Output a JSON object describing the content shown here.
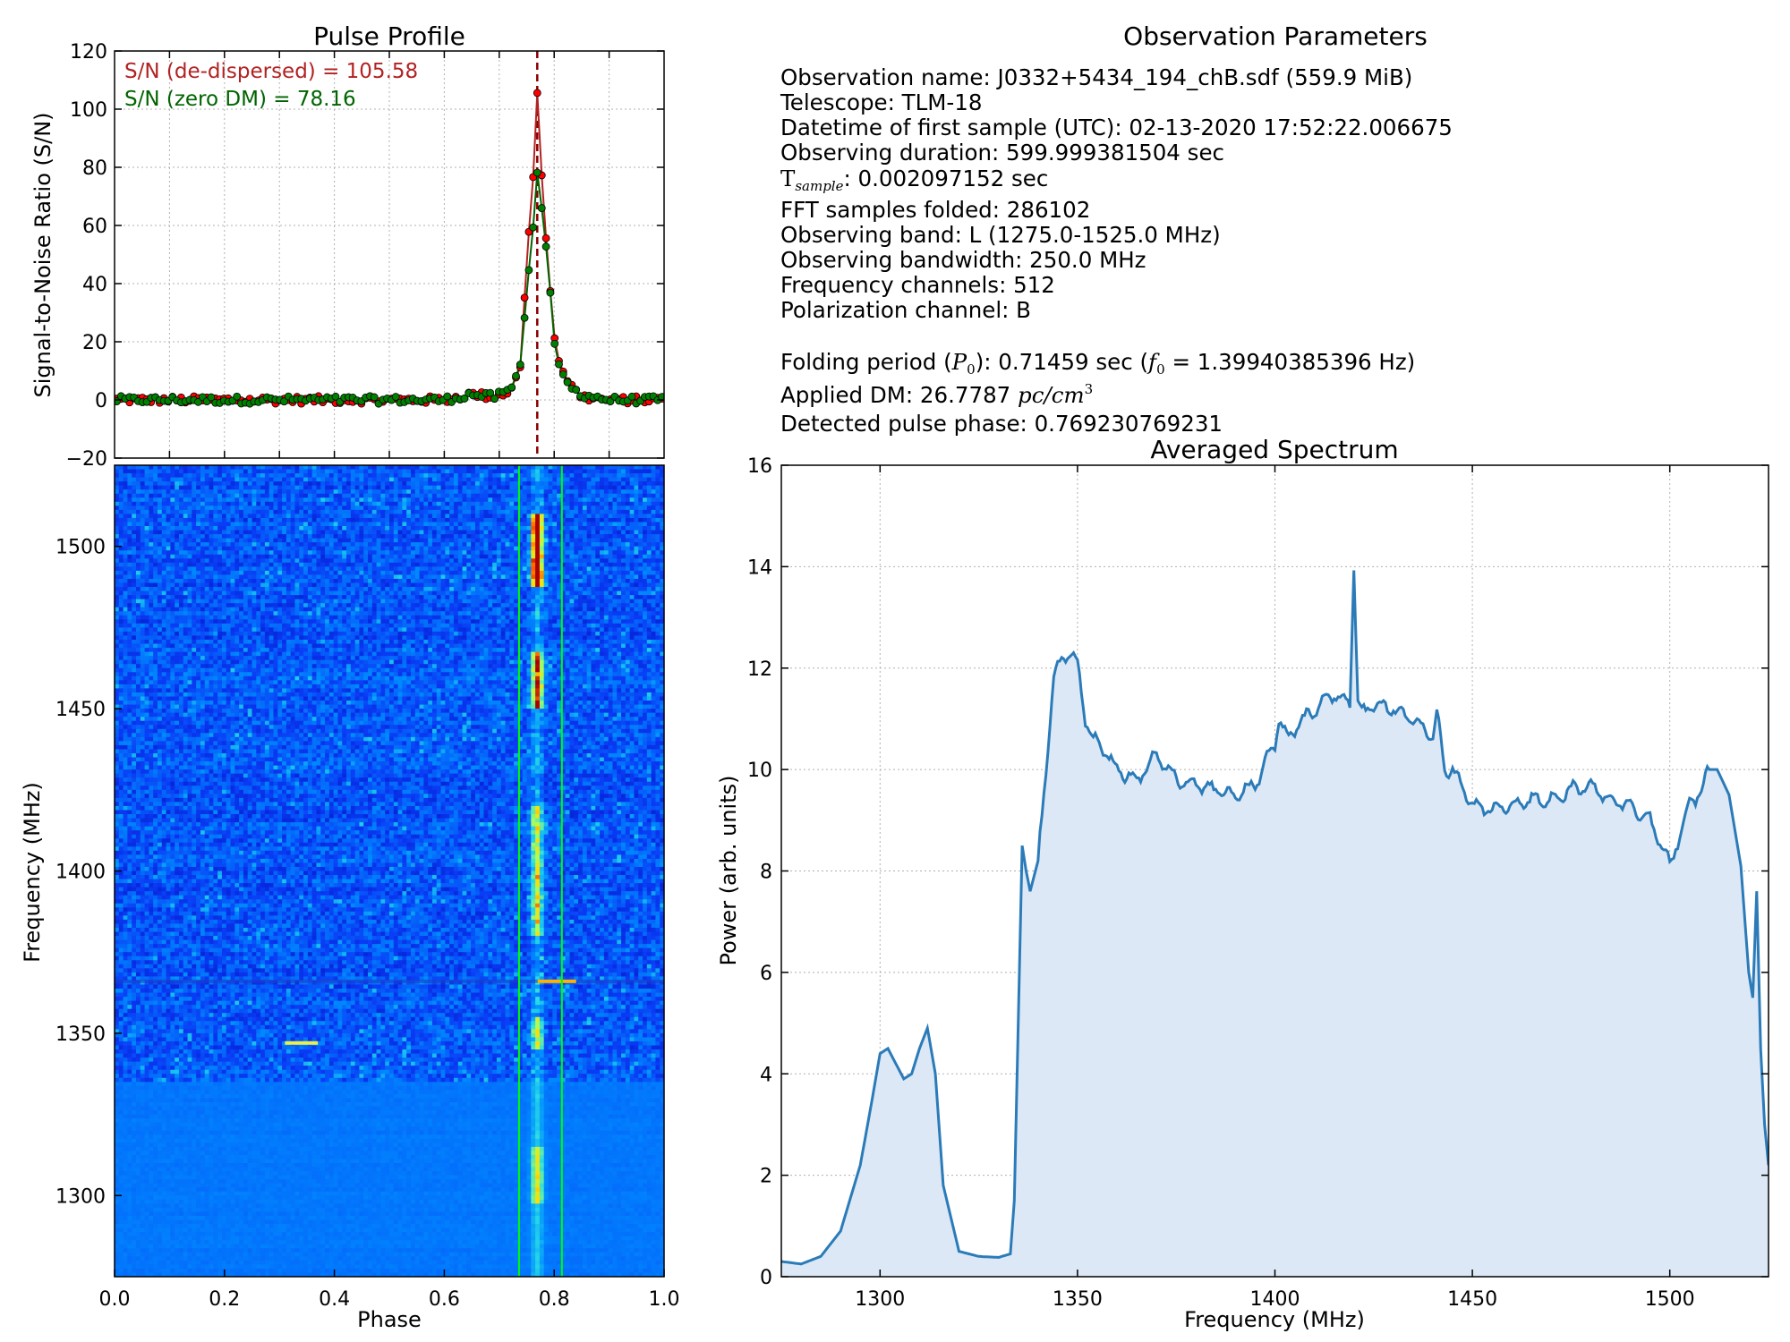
{
  "colors": {
    "snr_dedispersed": "#b22222",
    "snr_zero_dm": "#006400",
    "marker_red": "#ff0000",
    "marker_green": "#008000",
    "peak_line": "#8b0000",
    "spectrum_line": "#2b7bb9",
    "spectrum_fill": "#dce8f5",
    "window_line": "#00ff00",
    "grid": "#b0b0b0"
  },
  "params": {
    "title": "Observation Parameters",
    "lines": [
      "Observation name: J0332+5434_194_chB.sdf (559.9 MiB)",
      "Telescope: TLM-18",
      "Datetime of first sample (UTC): 02-13-2020 17:52:22.006675",
      "Observing duration: 599.999381504 sec",
      "FFT samples folded: 286102",
      "Observing band: L (1275.0-1525.0 MHz)",
      "Observing bandwidth: 250.0 MHz",
      "Frequency channels: 512",
      "Polarization channel: B"
    ],
    "tsample_symbol": "T",
    "tsample_sub": "sample",
    "tsample_value": ": 0.002097152 sec",
    "folding_prefix": "Folding period (",
    "folding_symbol": "P",
    "folding_sub": "0",
    "folding_mid": "): 0.71459 sec (",
    "folding_f": "f",
    "folding_fsub": "0",
    "folding_fval": " = 1.39940385396 Hz)",
    "dm_prefix": "Applied DM: 26.7787 ",
    "dm_unit": "pc/cm",
    "dm_exp": "3",
    "phase_line": "Detected pulse phase: 0.769230769231"
  },
  "chart_data": [
    {
      "id": "pulse_profile",
      "type": "line",
      "title": "Pulse Profile",
      "xlabel": "",
      "ylabel": "Signal-to-Noise Ratio (S/N)",
      "xlim": [
        0,
        1
      ],
      "ylim": [
        -20,
        120
      ],
      "yticks": [
        -20,
        0,
        20,
        40,
        60,
        80,
        100,
        120
      ],
      "grid": true,
      "annotations": [
        "S/N (de-dispersed) = 105.58",
        "S/N (zero DM) = 78.16"
      ],
      "peak_phase": 0.7692,
      "series": [
        {
          "name": "de-dispersed",
          "color": "#b22222",
          "x": [
            0.0,
            0.1,
            0.2,
            0.3,
            0.4,
            0.5,
            0.6,
            0.65,
            0.69,
            0.72,
            0.74,
            0.75,
            0.76,
            0.7692,
            0.78,
            0.79,
            0.8,
            0.81,
            0.83,
            0.85,
            0.9,
            1.0
          ],
          "y": [
            0,
            0,
            0,
            0,
            0,
            0,
            0,
            2,
            1,
            3,
            12,
            50,
            70,
            105.58,
            68,
            44,
            22,
            12,
            5,
            1,
            0,
            0
          ]
        },
        {
          "name": "zero DM",
          "color": "#006400",
          "x": [
            0.0,
            0.1,
            0.2,
            0.3,
            0.4,
            0.5,
            0.6,
            0.65,
            0.69,
            0.72,
            0.74,
            0.75,
            0.76,
            0.7692,
            0.78,
            0.79,
            0.8,
            0.81,
            0.83,
            0.85,
            0.9,
            1.0
          ],
          "y": [
            0,
            0,
            0,
            0,
            0,
            0,
            0,
            2,
            1,
            3,
            13,
            38,
            55,
            78.16,
            62,
            44,
            20,
            11,
            4,
            2,
            0,
            0
          ]
        }
      ]
    },
    {
      "id": "waterfall",
      "type": "heatmap",
      "xlabel": "Phase",
      "ylabel": "Frequency (MHz)",
      "xlim": [
        0,
        1
      ],
      "ylim": [
        1275,
        1525
      ],
      "xticks": [
        "0.0",
        "0.2",
        "0.4",
        "0.6",
        "0.8",
        "1.0"
      ],
      "yticks": [
        1300,
        1350,
        1400,
        1450,
        1500
      ],
      "window_phase": [
        0.736,
        0.814
      ],
      "pulse_phase": 0.7692,
      "bright_patches_mhz": [
        [
          1488,
          1510,
          1.0
        ],
        [
          1450,
          1468,
          0.75
        ],
        [
          1380,
          1420,
          0.5
        ],
        [
          1345,
          1355,
          0.5
        ],
        [
          1298,
          1315,
          0.45
        ]
      ],
      "rfi_rows_mhz": [
        1366,
        1347
      ],
      "low_band_mhz": [
        1275,
        1335
      ]
    },
    {
      "id": "averaged_spectrum",
      "type": "area",
      "title": "Averaged Spectrum",
      "xlabel": "Frequency (MHz)",
      "ylabel": "Power (arb. units)",
      "xlim": [
        1275,
        1525
      ],
      "ylim": [
        0,
        16
      ],
      "xticks": [
        1300,
        1350,
        1400,
        1450,
        1500
      ],
      "yticks": [
        0,
        2,
        4,
        6,
        8,
        10,
        12,
        14,
        16
      ],
      "grid": true,
      "x": [
        1275,
        1280,
        1285,
        1290,
        1295,
        1298,
        1300,
        1302,
        1304,
        1306,
        1308,
        1310,
        1312,
        1314,
        1316,
        1320,
        1325,
        1330,
        1333,
        1334,
        1335,
        1336,
        1337,
        1338,
        1340,
        1342,
        1344,
        1346,
        1348,
        1350,
        1352,
        1354,
        1356,
        1360,
        1365,
        1370,
        1375,
        1380,
        1385,
        1390,
        1395,
        1398,
        1400,
        1401,
        1403,
        1405,
        1410,
        1415,
        1419,
        1420,
        1421,
        1422,
        1425,
        1430,
        1435,
        1440,
        1441,
        1443,
        1445,
        1450,
        1455,
        1460,
        1465,
        1470,
        1475,
        1480,
        1485,
        1490,
        1495,
        1499,
        1500,
        1502,
        1505,
        1508,
        1510,
        1512,
        1515,
        1518,
        1520,
        1521,
        1522,
        1523,
        1524,
        1525
      ],
      "y": [
        0.3,
        0.25,
        0.4,
        0.9,
        2.2,
        3.5,
        4.4,
        4.5,
        4.2,
        3.9,
        4.0,
        4.5,
        4.9,
        4.0,
        1.8,
        0.5,
        0.4,
        0.38,
        0.45,
        1.5,
        5.0,
        8.5,
        8.0,
        7.6,
        8.2,
        10.0,
        11.8,
        12.2,
        12.3,
        12.1,
        11.0,
        10.6,
        10.5,
        10.0,
        9.8,
        10.3,
        9.8,
        9.7,
        9.6,
        9.5,
        9.7,
        10.2,
        10.5,
        11.0,
        10.6,
        10.8,
        11.2,
        11.5,
        11.3,
        14.05,
        11.3,
        11.1,
        11.3,
        11.2,
        11.0,
        10.6,
        11.1,
        10.0,
        10.0,
        9.3,
        9.2,
        9.3,
        9.4,
        9.4,
        9.6,
        9.7,
        9.4,
        9.3,
        9.0,
        8.3,
        8.1,
        8.6,
        9.3,
        9.6,
        10.0,
        10.0,
        9.5,
        8.1,
        6.0,
        5.5,
        7.6,
        4.5,
        3.0,
        2.2
      ]
    }
  ]
}
